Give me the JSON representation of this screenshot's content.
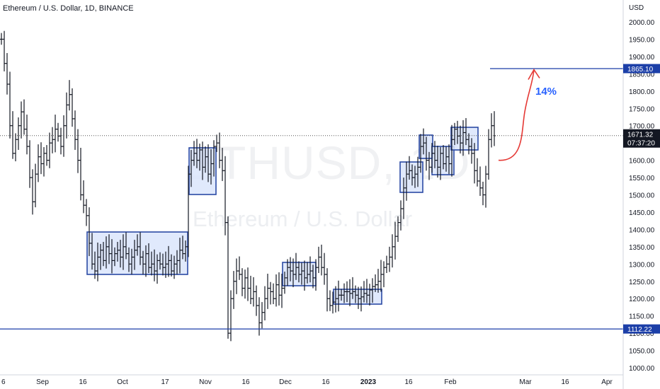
{
  "chart_data": {
    "type": "ohlc",
    "title": "Ethereum / U.S. Dollar, 1D, BINANCE",
    "watermark_symbol": "ETHUSD, 1D",
    "watermark_name": "Ethereum / U.S. Dollar",
    "currency": "USD",
    "ylim": [
      990,
      2030
    ],
    "y_ticks": [
      "2000.00",
      "1950.00",
      "1900.00",
      "1850.00",
      "1800.00",
      "1750.00",
      "1700.00",
      "1650.00",
      "1600.00",
      "1550.00",
      "1500.00",
      "1450.00",
      "1400.00",
      "1350.00",
      "1300.00",
      "1250.00",
      "1200.00",
      "1150.00",
      "1100.00",
      "1050.00",
      "1000.00"
    ],
    "x_ticks": [
      "6",
      "Sep",
      "16",
      "Oct",
      "17",
      "Nov",
      "16",
      "Dec",
      "16",
      "2023",
      "16",
      "Feb",
      "Mar",
      "16",
      "Apr"
    ],
    "grid": false,
    "current_price": "1671.32",
    "countdown": "07:37:20",
    "levels": [
      {
        "label": "1865.10",
        "value": 1865.1
      },
      {
        "label": "1112.22",
        "value": 1112.22
      }
    ],
    "annotation": "14%",
    "zones_count": 10
  },
  "colors": {
    "accent": "#2962ff",
    "zone_fill": "#dbe5fb",
    "zone_border": "#2b4aa5",
    "level_line": "#1c3fa8",
    "arrow": "#e53935"
  }
}
